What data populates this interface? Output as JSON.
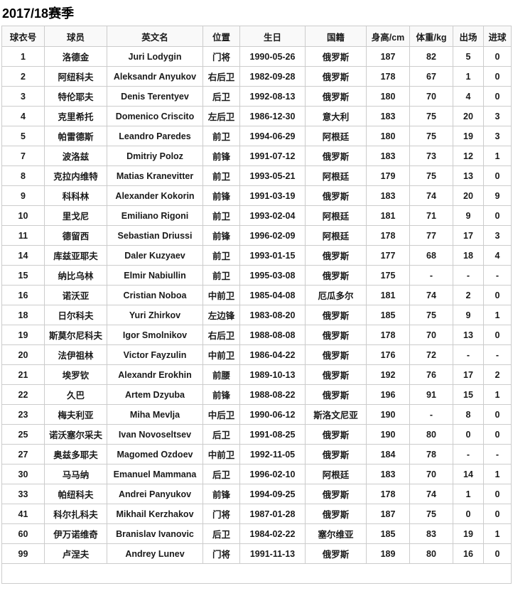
{
  "page": {
    "title": "2017/18赛季"
  },
  "colors": {
    "border": "#cccccc",
    "header_bg": "#f9f9f9",
    "text": "#1a1a1a"
  },
  "table": {
    "columns": [
      {
        "key": "number",
        "label": "球衣号"
      },
      {
        "key": "name_cn",
        "label": "球员"
      },
      {
        "key": "name_en",
        "label": "英文名"
      },
      {
        "key": "position",
        "label": "位置"
      },
      {
        "key": "birthday",
        "label": "生日"
      },
      {
        "key": "nationality",
        "label": "国籍"
      },
      {
        "key": "height",
        "label": "身高/cm"
      },
      {
        "key": "weight",
        "label": "体重/kg"
      },
      {
        "key": "appearances",
        "label": "出场"
      },
      {
        "key": "goals",
        "label": "进球"
      }
    ],
    "rows": [
      {
        "number": "1",
        "name_cn": "洛德金",
        "name_en": "Juri Lodygin",
        "position": "门将",
        "birthday": "1990-05-26",
        "nationality": "俄罗斯",
        "height": "187",
        "weight": "82",
        "appearances": "5",
        "goals": "0"
      },
      {
        "number": "2",
        "name_cn": "阿纽科夫",
        "name_en": "Aleksandr Anyukov",
        "position": "右后卫",
        "birthday": "1982-09-28",
        "nationality": "俄罗斯",
        "height": "178",
        "weight": "67",
        "appearances": "1",
        "goals": "0"
      },
      {
        "number": "3",
        "name_cn": "特伦耶夫",
        "name_en": "Denis Terentyev",
        "position": "后卫",
        "birthday": "1992-08-13",
        "nationality": "俄罗斯",
        "height": "180",
        "weight": "70",
        "appearances": "4",
        "goals": "0"
      },
      {
        "number": "4",
        "name_cn": "克里希托",
        "name_en": "Domenico Criscito",
        "position": "左后卫",
        "birthday": "1986-12-30",
        "nationality": "意大利",
        "height": "183",
        "weight": "75",
        "appearances": "20",
        "goals": "3"
      },
      {
        "number": "5",
        "name_cn": "帕雷德斯",
        "name_en": "Leandro Paredes",
        "position": "前卫",
        "birthday": "1994-06-29",
        "nationality": "阿根廷",
        "height": "180",
        "weight": "75",
        "appearances": "19",
        "goals": "3"
      },
      {
        "number": "7",
        "name_cn": "波洛兹",
        "name_en": "Dmitriy Poloz",
        "position": "前锋",
        "birthday": "1991-07-12",
        "nationality": "俄罗斯",
        "height": "183",
        "weight": "73",
        "appearances": "12",
        "goals": "1"
      },
      {
        "number": "8",
        "name_cn": "克拉内维特",
        "name_en": "Matias Kranevitter",
        "position": "前卫",
        "birthday": "1993-05-21",
        "nationality": "阿根廷",
        "height": "179",
        "weight": "75",
        "appearances": "13",
        "goals": "0"
      },
      {
        "number": "9",
        "name_cn": "科科林",
        "name_en": "Alexander Kokorin",
        "position": "前锋",
        "birthday": "1991-03-19",
        "nationality": "俄罗斯",
        "height": "183",
        "weight": "74",
        "appearances": "20",
        "goals": "9"
      },
      {
        "number": "10",
        "name_cn": "里戈尼",
        "name_en": "Emiliano Rigoni",
        "position": "前卫",
        "birthday": "1993-02-04",
        "nationality": "阿根廷",
        "height": "181",
        "weight": "71",
        "appearances": "9",
        "goals": "0"
      },
      {
        "number": "11",
        "name_cn": "德留西",
        "name_en": "Sebastian Driussi",
        "position": "前锋",
        "birthday": "1996-02-09",
        "nationality": "阿根廷",
        "height": "178",
        "weight": "77",
        "appearances": "17",
        "goals": "3"
      },
      {
        "number": "14",
        "name_cn": "库兹亚耶夫",
        "name_en": "Daler Kuzyaev",
        "position": "前卫",
        "birthday": "1993-01-15",
        "nationality": "俄罗斯",
        "height": "177",
        "weight": "68",
        "appearances": "18",
        "goals": "4"
      },
      {
        "number": "15",
        "name_cn": "纳比乌林",
        "name_en": "Elmir Nabiullin",
        "position": "前卫",
        "birthday": "1995-03-08",
        "nationality": "俄罗斯",
        "height": "175",
        "weight": "-",
        "appearances": "-",
        "goals": "-"
      },
      {
        "number": "16",
        "name_cn": "诺沃亚",
        "name_en": "Cristian Noboa",
        "position": "中前卫",
        "birthday": "1985-04-08",
        "nationality": "厄瓜多尔",
        "height": "181",
        "weight": "74",
        "appearances": "2",
        "goals": "0"
      },
      {
        "number": "18",
        "name_cn": "日尔科夫",
        "name_en": "Yuri Zhirkov",
        "position": "左边锋",
        "birthday": "1983-08-20",
        "nationality": "俄罗斯",
        "height": "185",
        "weight": "75",
        "appearances": "9",
        "goals": "1"
      },
      {
        "number": "19",
        "name_cn": "斯莫尔尼科夫",
        "name_en": "Igor Smolnikov",
        "position": "右后卫",
        "birthday": "1988-08-08",
        "nationality": "俄罗斯",
        "height": "178",
        "weight": "70",
        "appearances": "13",
        "goals": "0"
      },
      {
        "number": "20",
        "name_cn": "法伊祖林",
        "name_en": "Victor Fayzulin",
        "position": "中前卫",
        "birthday": "1986-04-22",
        "nationality": "俄罗斯",
        "height": "176",
        "weight": "72",
        "appearances": "-",
        "goals": "-"
      },
      {
        "number": "21",
        "name_cn": "埃罗钦",
        "name_en": "Alexandr Erokhin",
        "position": "前腰",
        "birthday": "1989-10-13",
        "nationality": "俄罗斯",
        "height": "192",
        "weight": "76",
        "appearances": "17",
        "goals": "2"
      },
      {
        "number": "22",
        "name_cn": "久巴",
        "name_en": "Artem Dzyuba",
        "position": "前锋",
        "birthday": "1988-08-22",
        "nationality": "俄罗斯",
        "height": "196",
        "weight": "91",
        "appearances": "15",
        "goals": "1"
      },
      {
        "number": "23",
        "name_cn": "梅夫利亚",
        "name_en": "Miha Mevlja",
        "position": "中后卫",
        "birthday": "1990-06-12",
        "nationality": "斯洛文尼亚",
        "height": "190",
        "weight": "-",
        "appearances": "8",
        "goals": "0"
      },
      {
        "number": "25",
        "name_cn": "诺沃塞尔采夫",
        "name_en": "Ivan Novoseltsev",
        "position": "后卫",
        "birthday": "1991-08-25",
        "nationality": "俄罗斯",
        "height": "190",
        "weight": "80",
        "appearances": "0",
        "goals": "0"
      },
      {
        "number": "27",
        "name_cn": "奥兹多耶夫",
        "name_en": "Magomed Ozdoev",
        "position": "中前卫",
        "birthday": "1992-11-05",
        "nationality": "俄罗斯",
        "height": "184",
        "weight": "78",
        "appearances": "-",
        "goals": "-"
      },
      {
        "number": "30",
        "name_cn": "马马纳",
        "name_en": "Emanuel Mammana",
        "position": "后卫",
        "birthday": "1996-02-10",
        "nationality": "阿根廷",
        "height": "183",
        "weight": "70",
        "appearances": "14",
        "goals": "1"
      },
      {
        "number": "33",
        "name_cn": "帕纽科夫",
        "name_en": "Andrei Panyukov",
        "position": "前锋",
        "birthday": "1994-09-25",
        "nationality": "俄罗斯",
        "height": "178",
        "weight": "74",
        "appearances": "1",
        "goals": "0"
      },
      {
        "number": "41",
        "name_cn": "科尔扎科夫",
        "name_en": "Mikhail Kerzhakov",
        "position": "门将",
        "birthday": "1987-01-28",
        "nationality": "俄罗斯",
        "height": "187",
        "weight": "75",
        "appearances": "0",
        "goals": "0"
      },
      {
        "number": "60",
        "name_cn": "伊万诺维奇",
        "name_en": "Branislav Ivanovic",
        "position": "后卫",
        "birthday": "1984-02-22",
        "nationality": "塞尔维亚",
        "height": "185",
        "weight": "83",
        "appearances": "19",
        "goals": "1"
      },
      {
        "number": "99",
        "name_cn": "卢涅夫",
        "name_en": "Andrey Lunev",
        "position": "门将",
        "birthday": "1991-11-13",
        "nationality": "俄罗斯",
        "height": "189",
        "weight": "80",
        "appearances": "16",
        "goals": "0"
      }
    ]
  }
}
